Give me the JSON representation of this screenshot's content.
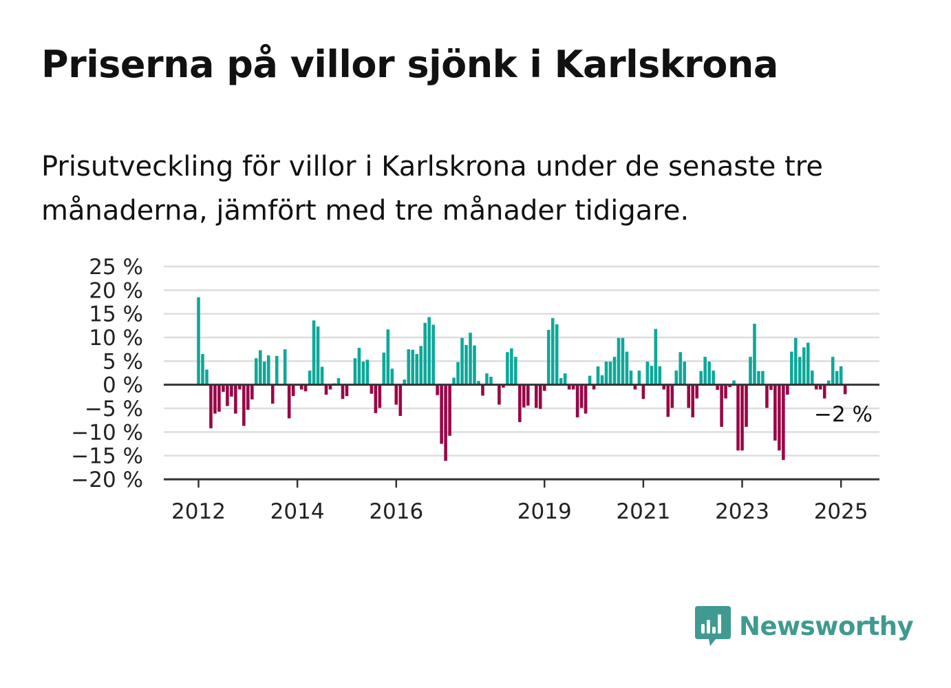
{
  "title": "Priserna på villor sjönk i Karlskrona",
  "subtitle": "Prisutveckling för villor i Karlskrona under de senaste tre månaderna, jämfört med tre månader tidigare.",
  "brand": {
    "name": "Newsworthy",
    "icon": "newsworthy-bars-icon",
    "color": "#3f9a91"
  },
  "colors": {
    "positive": "#0ea89a",
    "negative": "#990747",
    "grid": "#dddddd",
    "axis": "#333333"
  },
  "chart_data": {
    "type": "bar",
    "x_start": "2012-01",
    "x_frequency": "monthly",
    "values": [
      18.5,
      6.5,
      3.2,
      -9.2,
      -6.1,
      -5.7,
      -1.5,
      -4.5,
      -2.5,
      -6.1,
      -1.0,
      -8.7,
      -5.3,
      -3.1,
      5.6,
      7.3,
      4.9,
      6.2,
      -4.0,
      6.1,
      0.0,
      7.5,
      -7.1,
      -2.4,
      0.0,
      -1.0,
      -1.4,
      3.0,
      13.6,
      12.3,
      3.8,
      -2.1,
      -1.0,
      0.3,
      1.4,
      -3.0,
      -2.4,
      0.0,
      5.6,
      7.8,
      4.9,
      5.3,
      -1.9,
      -6.0,
      -4.9,
      6.8,
      11.7,
      3.4,
      -4.2,
      -6.6,
      1.1,
      7.5,
      7.4,
      6.5,
      8.2,
      13.1,
      14.3,
      12.7,
      -2.2,
      -12.5,
      -16.1,
      -10.8,
      1.5,
      4.8,
      9.9,
      8.4,
      11.0,
      8.3,
      0.8,
      -2.3,
      2.4,
      1.7,
      0.0,
      -4.2,
      -0.6,
      6.9,
      7.7,
      5.9,
      -7.9,
      -4.8,
      -4.4,
      0.0,
      -4.9,
      -5.1,
      -1.3,
      11.6,
      14.1,
      12.8,
      1.4,
      2.4,
      -1.0,
      -1.0,
      -6.9,
      -4.9,
      -6.1,
      1.9,
      -1.0,
      3.9,
      2.0,
      4.9,
      4.9,
      5.9,
      9.9,
      9.9,
      7.0,
      3.0,
      -1.0,
      3.0,
      -3.0,
      4.9,
      4.0,
      11.8,
      3.9,
      -1.0,
      -6.8,
      -4.9,
      3.0,
      6.9,
      4.9,
      -4.9,
      -6.9,
      -2.9,
      2.9,
      5.9,
      4.9,
      3.0,
      -1.1,
      -8.9,
      -2.9,
      -0.5,
      0.9,
      -13.9,
      -13.9,
      -8.9,
      5.9,
      12.9,
      2.9,
      2.9,
      -4.9,
      -1.1,
      -11.8,
      -13.9,
      -15.9,
      -2.1,
      7.0,
      9.9,
      5.9,
      7.9,
      8.9,
      3.0,
      -1.0,
      -1.0,
      -2.9,
      0.9,
      5.9,
      2.9,
      3.9,
      -2.0
    ],
    "x_ticks": [
      "2012",
      "2014",
      "2016",
      "2019",
      "2021",
      "2023",
      "2025"
    ],
    "y_ticks": [
      "25 %",
      "20 %",
      "15 %",
      "10 %",
      "5 %",
      "0 %",
      "−5 %",
      "−10 %",
      "−15 %",
      "−20 %"
    ],
    "ylim": [
      -20,
      25
    ],
    "last_label": "−2 %",
    "grid": true
  }
}
